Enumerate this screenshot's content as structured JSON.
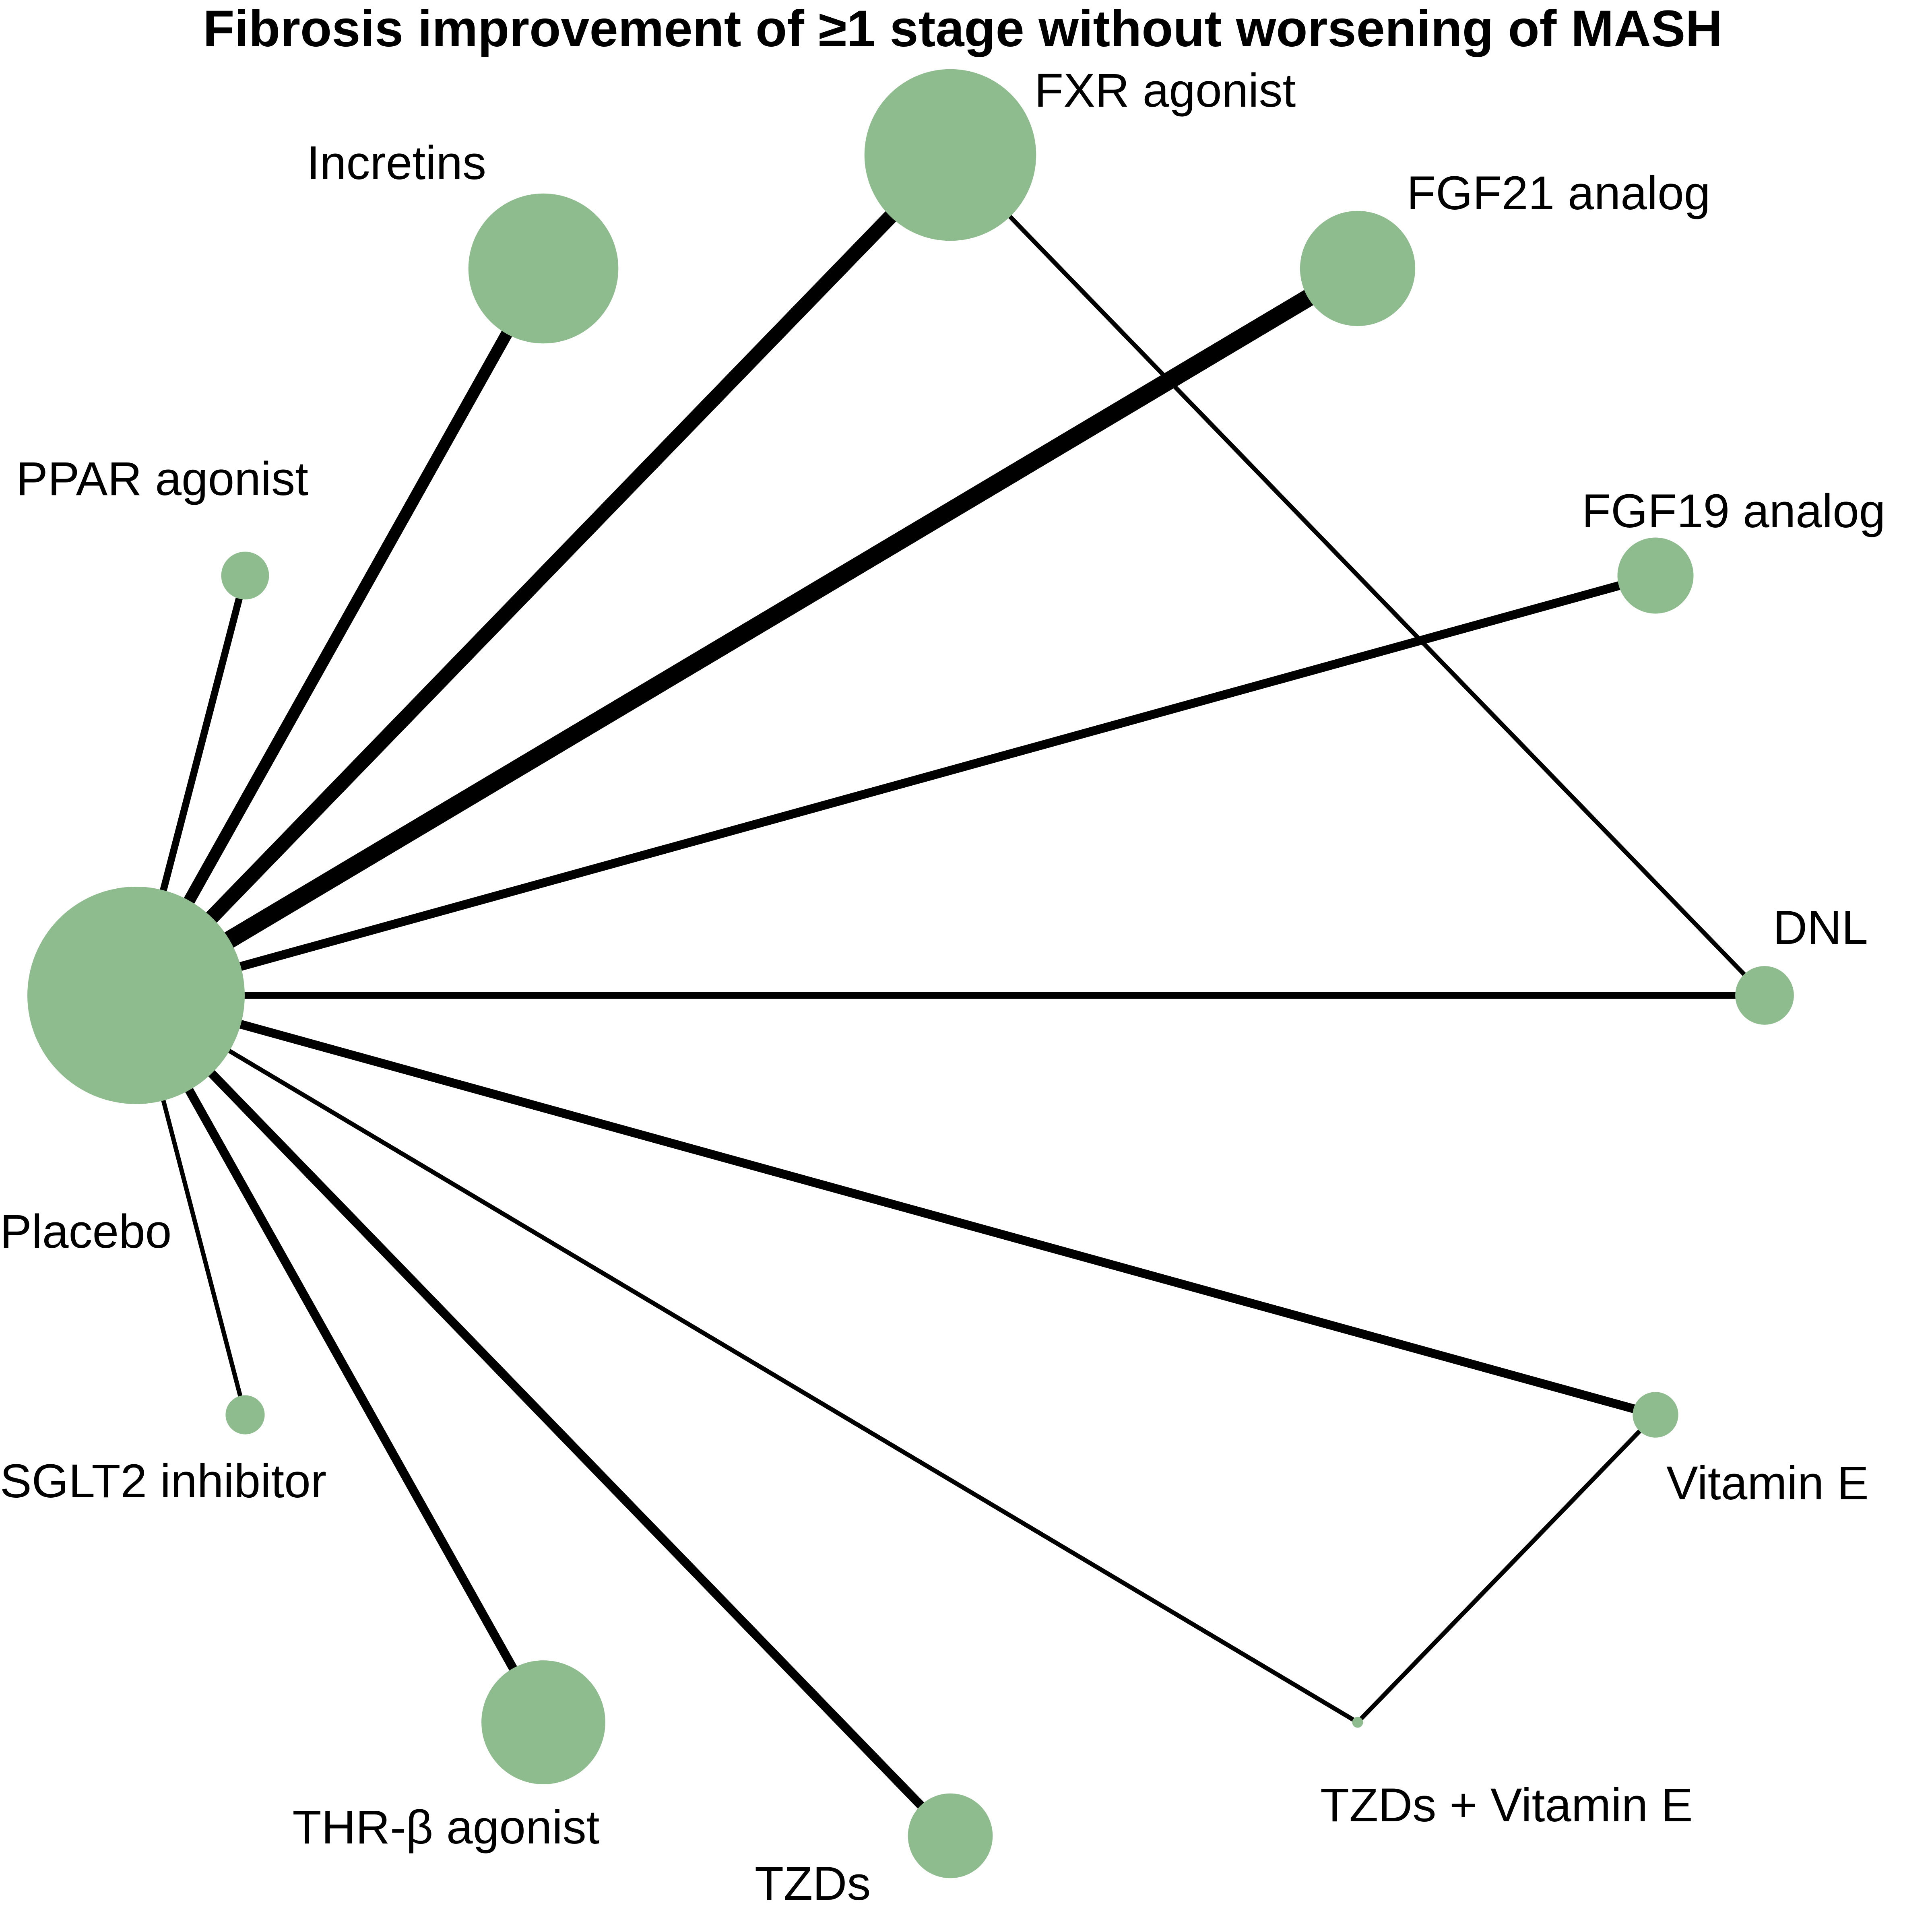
{
  "title": "Fibrosis improvement of ≥1 stage without worsening of MASH",
  "colors": {
    "node_fill": "#8fbc8f",
    "edge": "#000000",
    "text": "#000000",
    "background": "#ffffff"
  },
  "nodes": [
    {
      "id": "placebo",
      "label": "Placebo",
      "relative_size": 1.0
    },
    {
      "id": "ppar",
      "label": "PPAR agonist",
      "relative_size": 0.22
    },
    {
      "id": "incretins",
      "label": "Incretins",
      "relative_size": 0.69
    },
    {
      "id": "fxr",
      "label": "FXR agonist",
      "relative_size": 0.79
    },
    {
      "id": "fgf21",
      "label": "FGF21 analog",
      "relative_size": 0.53
    },
    {
      "id": "fgf19",
      "label": "FGF19 analog",
      "relative_size": 0.35
    },
    {
      "id": "dnl",
      "label": "DNL",
      "relative_size": 0.27
    },
    {
      "id": "vite",
      "label": "Vitamin E",
      "relative_size": 0.21
    },
    {
      "id": "tzdvite",
      "label": "TZDs + Vitamin E",
      "relative_size": 0.05
    },
    {
      "id": "tzds",
      "label": "TZDs",
      "relative_size": 0.39
    },
    {
      "id": "thrb",
      "label": "THR-β agonist",
      "relative_size": 0.57
    },
    {
      "id": "sglt2",
      "label": "SGLT2 inhibitor",
      "relative_size": 0.18
    }
  ],
  "edges": [
    {
      "from": "placebo",
      "to": "ppar",
      "relative_weight": 0.4
    },
    {
      "from": "placebo",
      "to": "incretins",
      "relative_weight": 0.67
    },
    {
      "from": "placebo",
      "to": "fxr",
      "relative_weight": 0.83
    },
    {
      "from": "placebo",
      "to": "fgf21",
      "relative_weight": 1.0
    },
    {
      "from": "placebo",
      "to": "fgf19",
      "relative_weight": 0.5
    },
    {
      "from": "placebo",
      "to": "dnl",
      "relative_weight": 0.4
    },
    {
      "from": "placebo",
      "to": "vite",
      "relative_weight": 0.5
    },
    {
      "from": "placebo",
      "to": "tzdvite",
      "relative_weight": 0.25
    },
    {
      "from": "placebo",
      "to": "tzds",
      "relative_weight": 0.5
    },
    {
      "from": "placebo",
      "to": "thrb",
      "relative_weight": 0.5
    },
    {
      "from": "placebo",
      "to": "sglt2",
      "relative_weight": 0.25
    },
    {
      "from": "fxr",
      "to": "dnl",
      "relative_weight": 0.25
    },
    {
      "from": "vite",
      "to": "tzdvite",
      "relative_weight": 0.25
    }
  ]
}
